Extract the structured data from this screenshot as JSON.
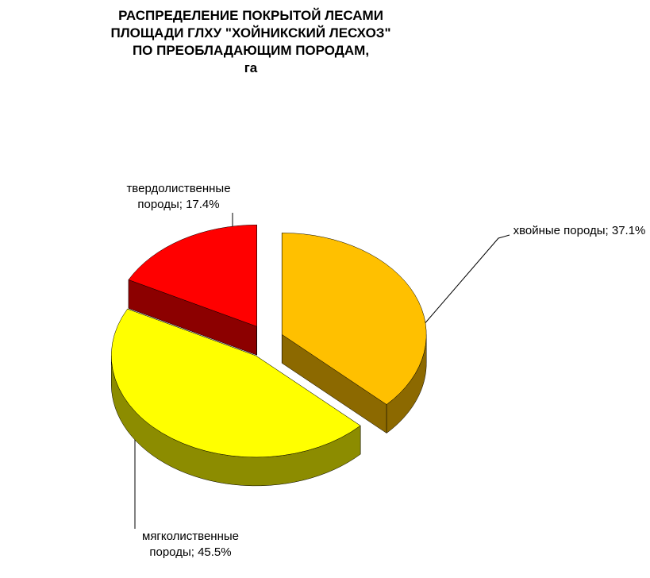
{
  "chart_data": {
    "type": "pie3d",
    "title": [
      "РАСПРЕДЕЛЕНИЕ  ПОКРЫТОЙ ЛЕСАМИ",
      "ПЛОЩАДИ ГЛХУ \"ХОЙНИКСКИЙ  ЛЕСХОЗ\"",
      "ПО  ПРЕОБЛАДАЮЩИМ  ПОРОДАМ,",
      "га"
    ],
    "values": [
      37.1,
      45.5,
      17.4
    ],
    "value_labels": [
      "хвойные породы; 37.1%",
      "мягколиственные породы; 45.5%",
      "твердолиственные породы; 17.4%"
    ],
    "colors": [
      "#FFC000",
      "#FFFF00",
      "#FF0000"
    ]
  }
}
